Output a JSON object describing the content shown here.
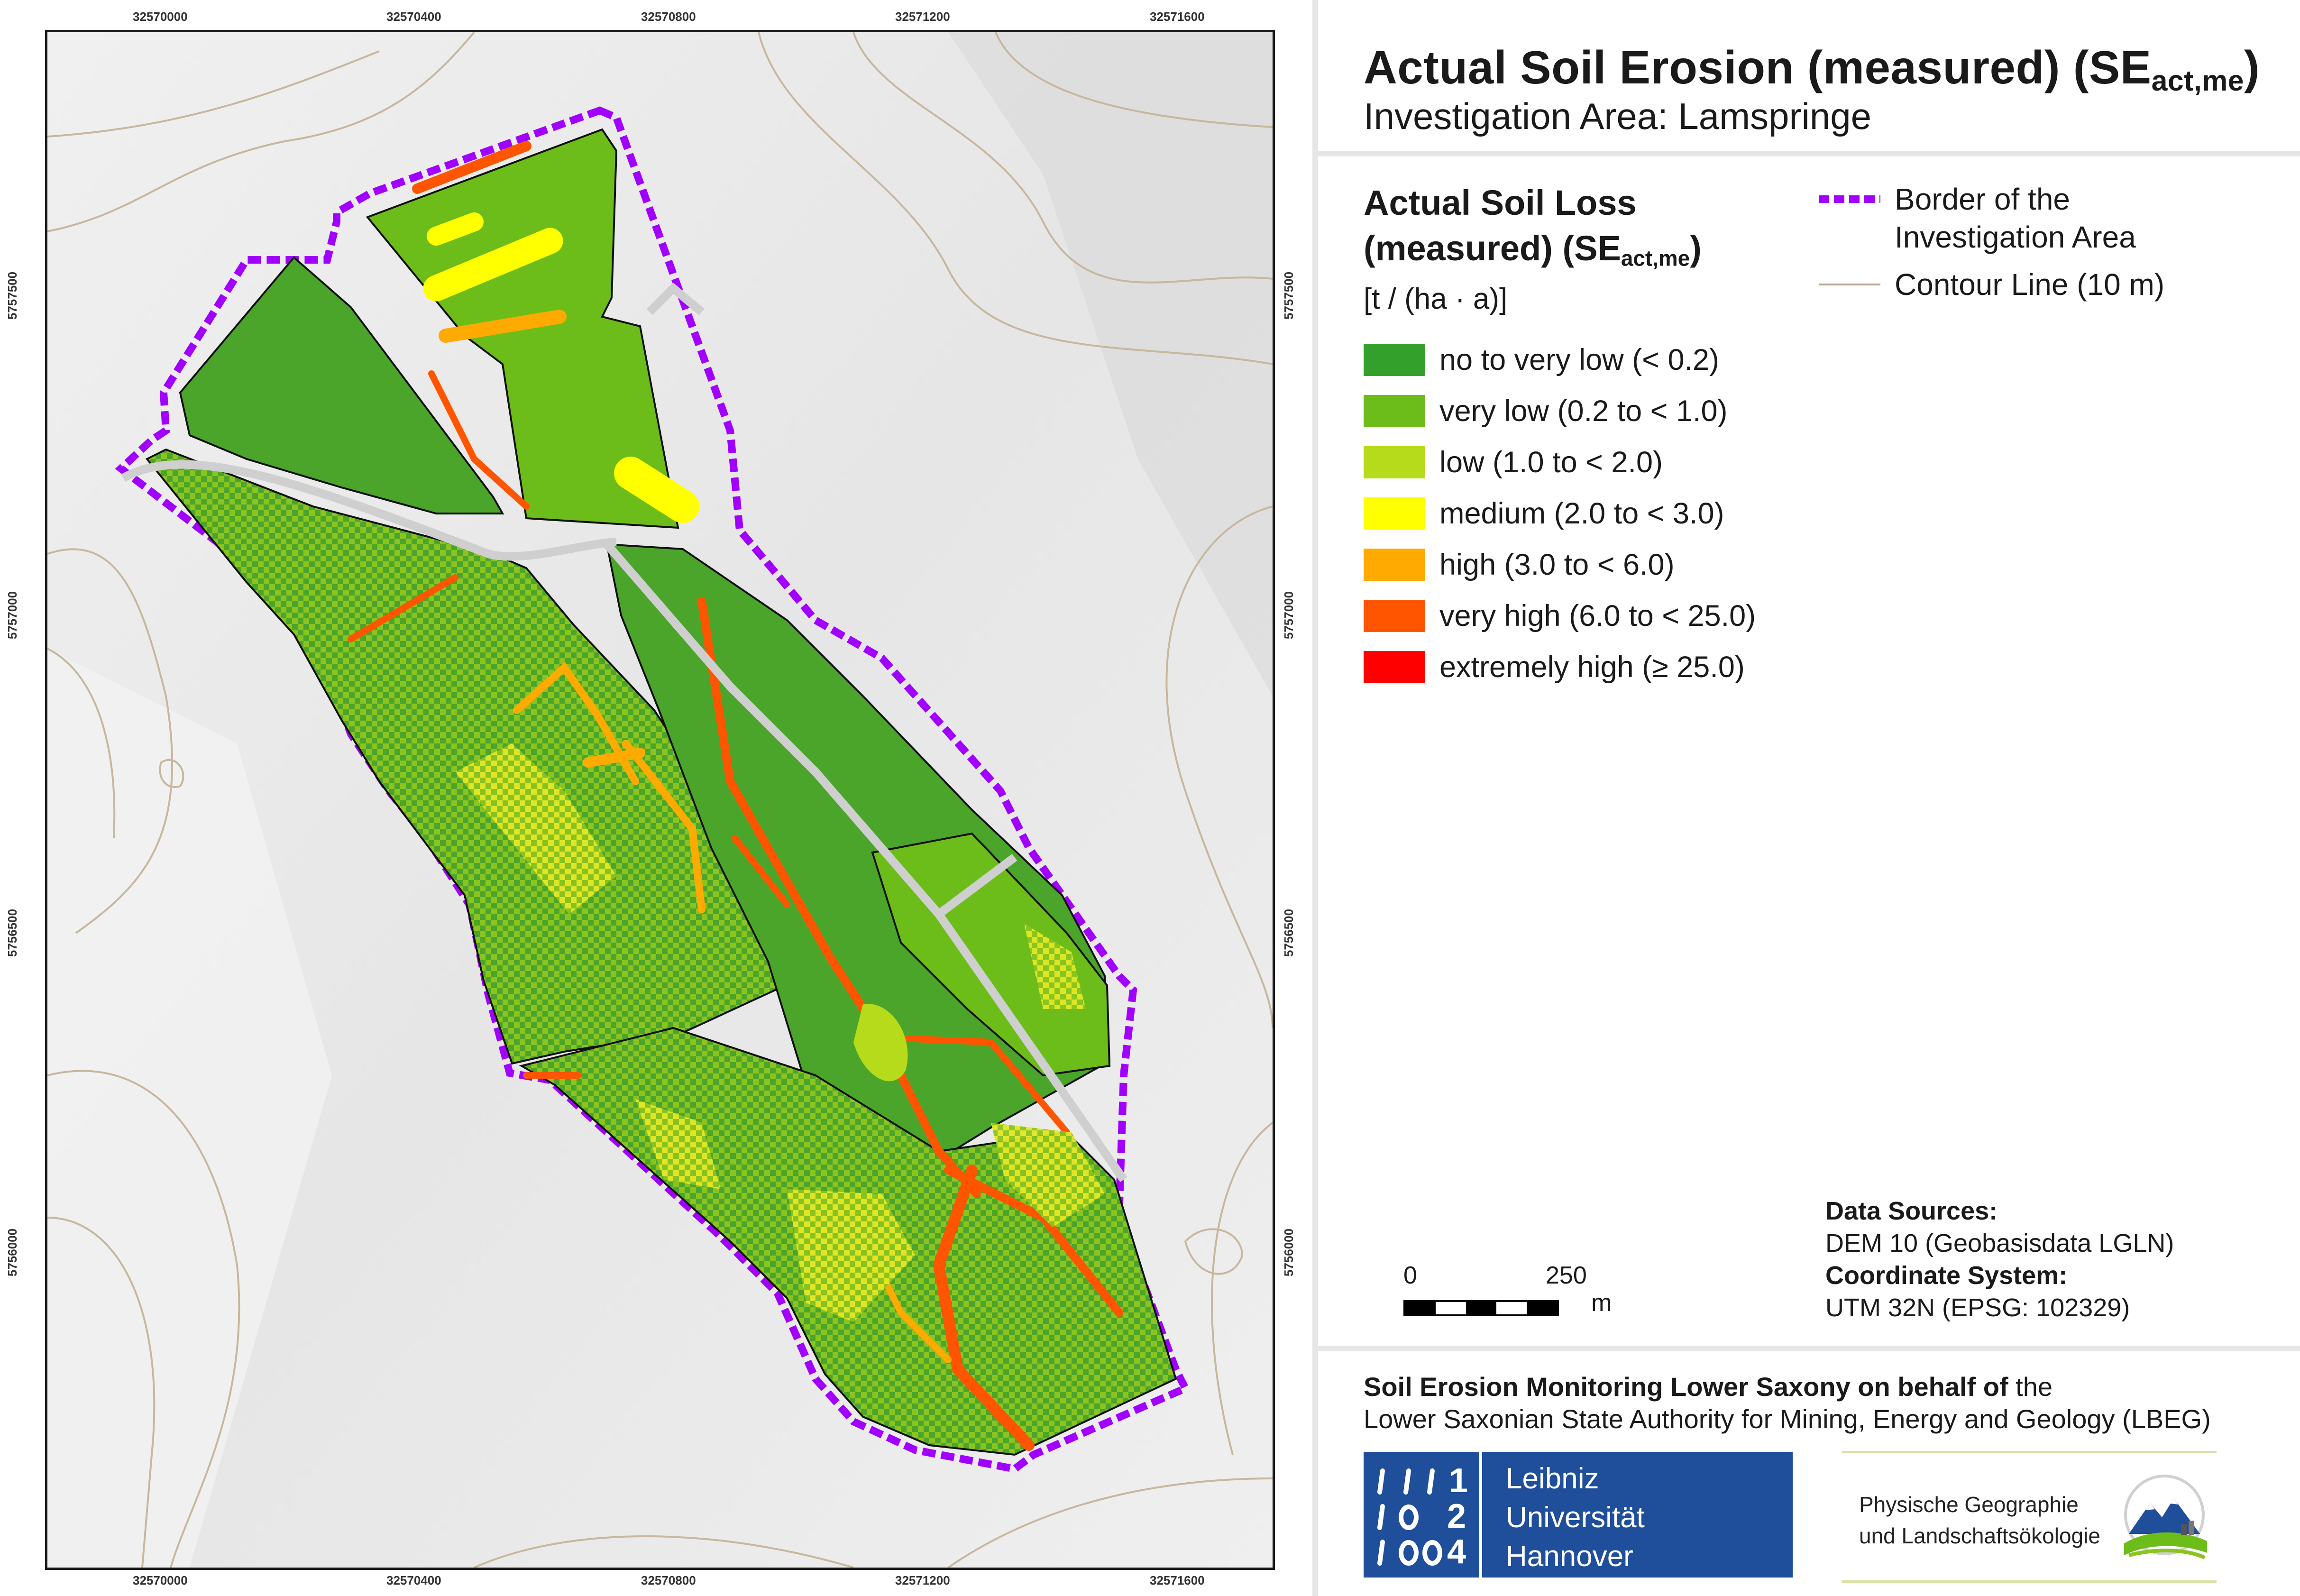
{
  "title_main": "Actual Soil Erosion (measured) (SE",
  "title_sub": "act,me",
  "title_close": ")",
  "subtitle": "Investigation Area: Lamspringe",
  "legend": {
    "heading_line1": "Actual Soil Loss",
    "heading_line2": "(measured) (SE",
    "heading_sub": "act,me",
    "heading_close": ")",
    "unit": "[t / (ha · a)]",
    "classes": [
      {
        "label": "no to very low (< 0.2)",
        "color": "#33a02c"
      },
      {
        "label": "very low (0.2 to < 1.0)",
        "color": "#6dbd1a"
      },
      {
        "label": "low (1.0 to < 2.0)",
        "color": "#b5db1a"
      },
      {
        "label": "medium (2.0 to < 3.0)",
        "color": "#ffff00"
      },
      {
        "label": "high (3.0 to < 6.0)",
        "color": "#ffaa00"
      },
      {
        "label": "very high (6.0 to < 25.0)",
        "color": "#ff5500"
      },
      {
        "label": "extremely high (≥ 25.0)",
        "color": "#ff0000"
      }
    ],
    "border_label_1": "Border of the",
    "border_label_2": "Investigation Area",
    "border_color": "#a100ff",
    "contour_label": "Contour Line (10 m)",
    "contour_color": "#b9a68a"
  },
  "data_sources": {
    "heading": "Data Sources:",
    "dem": "DEM 10 (Geobasisdata LGLN)",
    "crs_heading": "Coordinate System:",
    "crs": "UTM 32N (EPSG: 102329)"
  },
  "scalebar": {
    "start": "0",
    "end": "250",
    "unit": "m"
  },
  "axis": {
    "x_ticks": [
      "32570000",
      "32570400",
      "32570800",
      "32571200",
      "32571600"
    ],
    "y_ticks": [
      "5757500",
      "5757000",
      "5756500",
      "5756000"
    ]
  },
  "footer": {
    "line1_bold": "Soil Erosion Monitoring Lower Saxony on behalf of",
    "line1_rest": " the",
    "line2": "Lower Saxonian State Authority for Mining, Energy and Geology (LBEG)"
  },
  "logo_luh": {
    "line1": "Leibniz",
    "line2": "Universität",
    "line3": "Hannover",
    "mark": "1 1 1 0 2 1 0 0 4"
  },
  "logo_geo": {
    "line1": "Physische Geographie",
    "line2": "und Landschaftsökologie"
  }
}
